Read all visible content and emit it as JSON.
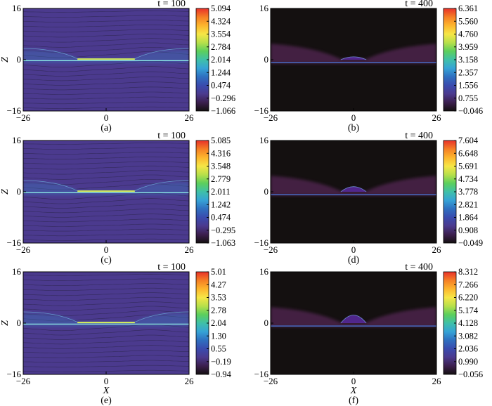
{
  "chart_data": [
    {
      "panel": "(a)",
      "type": "heatmap",
      "title": "t = 100",
      "t_value": 100,
      "xlabel": "",
      "ylabel": "Z",
      "xlim": [
        -26,
        26
      ],
      "ylim": [
        -16,
        16
      ],
      "xticks": [
        "−26",
        "0",
        "26"
      ],
      "yticks": [
        "16",
        "0",
        "−16"
      ],
      "colorbar": [
        "5.094",
        "4.324",
        "3.554",
        "2.784",
        "2.014",
        "1.244",
        "0.474",
        "−0.296",
        "−1.066"
      ],
      "background": "#4b3a8e"
    },
    {
      "panel": "(b)",
      "type": "heatmap",
      "title": "t = 400",
      "t_value": 400,
      "xlabel": "",
      "ylabel": "",
      "xlim": [
        -26,
        26
      ],
      "ylim": [
        -16,
        16
      ],
      "xticks": [
        "−26",
        "0",
        "26"
      ],
      "yticks": [
        "16",
        "0",
        "−16"
      ],
      "colorbar": [
        "6.361",
        "5.560",
        "4.760",
        "3.959",
        "3.158",
        "2.357",
        "1.556",
        "0.755",
        "−0.046"
      ],
      "background": "#141010"
    },
    {
      "panel": "(c)",
      "type": "heatmap",
      "title": "t = 100",
      "t_value": 100,
      "xlabel": "",
      "ylabel": "Z",
      "xlim": [
        -26,
        26
      ],
      "ylim": [
        -16,
        16
      ],
      "xticks": [
        "−26",
        "0",
        "26"
      ],
      "yticks": [
        "16",
        "0",
        "−16"
      ],
      "colorbar": [
        "5.085",
        "4.316",
        "3.548",
        "2.779",
        "2.011",
        "1.242",
        "0.474",
        "−0.295",
        "−1.063"
      ],
      "background": "#4b3a8e"
    },
    {
      "panel": "(d)",
      "type": "heatmap",
      "title": "t = 400",
      "t_value": 400,
      "xlabel": "",
      "ylabel": "",
      "xlim": [
        -26,
        26
      ],
      "ylim": [
        -16,
        16
      ],
      "xticks": [
        "−26",
        "0",
        "26"
      ],
      "yticks": [
        "16",
        "0",
        "−16"
      ],
      "colorbar": [
        "7.604",
        "6.648",
        "5.691",
        "4.734",
        "3.778",
        "2.821",
        "1.864",
        "0.908",
        "−0.049"
      ],
      "background": "#141010"
    },
    {
      "panel": "(e)",
      "type": "heatmap",
      "title": "t = 100",
      "t_value": 100,
      "xlabel": "X",
      "ylabel": "Z",
      "xlim": [
        -26,
        26
      ],
      "ylim": [
        -16,
        16
      ],
      "xticks": [
        "−26",
        "0",
        "26"
      ],
      "yticks": [
        "16",
        "0",
        "−16"
      ],
      "colorbar": [
        "5.01",
        "4.27",
        "3.53",
        "2.78",
        "2.04",
        "1.30",
        "0.55",
        "−0.19",
        "−0.94"
      ],
      "background": "#4b3a8e"
    },
    {
      "panel": "(f)",
      "type": "heatmap",
      "title": "t = 400",
      "t_value": 400,
      "xlabel": "X",
      "ylabel": "",
      "xlim": [
        -26,
        26
      ],
      "ylim": [
        -16,
        16
      ],
      "xticks": [
        "−26",
        "0",
        "26"
      ],
      "yticks": [
        "16",
        "0",
        "−16"
      ],
      "colorbar": [
        "8.312",
        "7.266",
        "6.220",
        "5.174",
        "4.128",
        "3.082",
        "2.036",
        "0.990",
        "−0.056"
      ],
      "background": "#141010"
    }
  ],
  "colorbar_colors": [
    "#e8312a",
    "#f57f25",
    "#fdb62d",
    "#f6e646",
    "#b8e04a",
    "#5ccf5c",
    "#3fc0a8",
    "#36a3d6",
    "#2f6fc0",
    "#3a4bae",
    "#4b3a8e",
    "#3c1f4e",
    "#141010"
  ]
}
